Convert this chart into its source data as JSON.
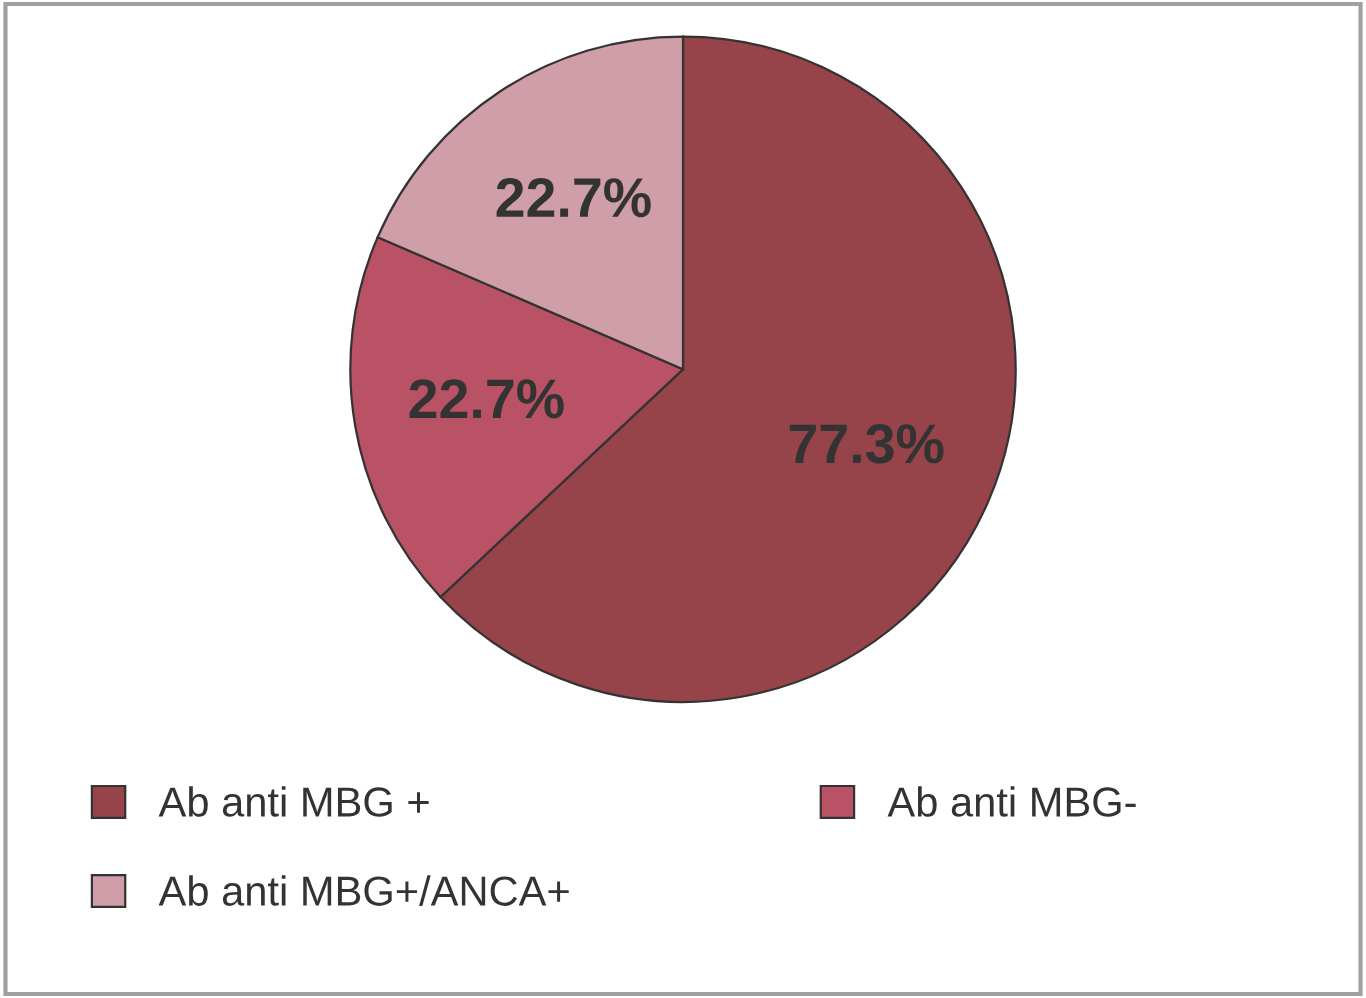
{
  "chart_data": {
    "type": "pie",
    "categories": [
      "Ab anti MBG +",
      "Ab anti MBG-",
      "Ab anti MBG+/ANCA+"
    ],
    "values": [
      77.3,
      22.7,
      22.7
    ],
    "value_labels": [
      "77.3%",
      "22.7%",
      "22.7%"
    ],
    "colors": [
      "#96434a",
      "#b95265",
      "#d09ea8"
    ],
    "legend": "bottom"
  }
}
